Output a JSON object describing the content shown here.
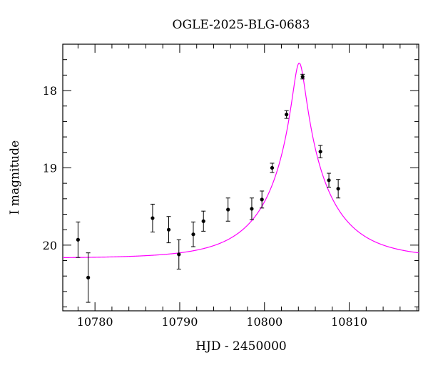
{
  "chart_data": {
    "type": "scatter",
    "title": "OGLE-2025-BLG-0683",
    "xlabel": "HJD - 2450000",
    "ylabel": "I magnitude",
    "xlim": [
      10776.2,
      10818.2
    ],
    "ylim": [
      20.85,
      17.4
    ],
    "y_inverted": true,
    "grid": false,
    "x_major_ticks": [
      10780,
      10790,
      10800,
      10810
    ],
    "x_tick_labels": [
      "10780",
      "10790",
      "10800",
      "10810"
    ],
    "x_minor_step": 2,
    "y_major_ticks": [
      18,
      19,
      20
    ],
    "y_tick_labels": [
      "18",
      "19",
      "20"
    ],
    "y_minor_step": 0.2,
    "series": [
      {
        "type": "points_with_errorbars",
        "color": "#000000",
        "points": [
          {
            "x": 10778.0,
            "y": 19.93,
            "err": 0.23
          },
          {
            "x": 10779.2,
            "y": 20.42,
            "err": 0.32
          },
          {
            "x": 10786.8,
            "y": 19.65,
            "err": 0.18
          },
          {
            "x": 10788.7,
            "y": 19.8,
            "err": 0.17
          },
          {
            "x": 10789.9,
            "y": 20.12,
            "err": 0.19
          },
          {
            "x": 10791.6,
            "y": 19.86,
            "err": 0.16
          },
          {
            "x": 10792.8,
            "y": 19.69,
            "err": 0.13
          },
          {
            "x": 10795.7,
            "y": 19.54,
            "err": 0.15
          },
          {
            "x": 10798.5,
            "y": 19.53,
            "err": 0.14
          },
          {
            "x": 10799.7,
            "y": 19.41,
            "err": 0.11
          },
          {
            "x": 10800.9,
            "y": 19.0,
            "err": 0.06
          },
          {
            "x": 10802.6,
            "y": 18.31,
            "err": 0.05
          },
          {
            "x": 10804.5,
            "y": 17.82,
            "err": 0.03
          },
          {
            "x": 10806.6,
            "y": 18.79,
            "err": 0.08
          },
          {
            "x": 10807.6,
            "y": 19.16,
            "err": 0.09
          },
          {
            "x": 10808.7,
            "y": 19.27,
            "err": 0.12
          }
        ]
      },
      {
        "type": "model_curve",
        "color": "#ff00ff",
        "model": {
          "t0": 10804.1,
          "tE": 7.3,
          "u0": 0.098,
          "I_base": 20.17
        }
      }
    ]
  }
}
